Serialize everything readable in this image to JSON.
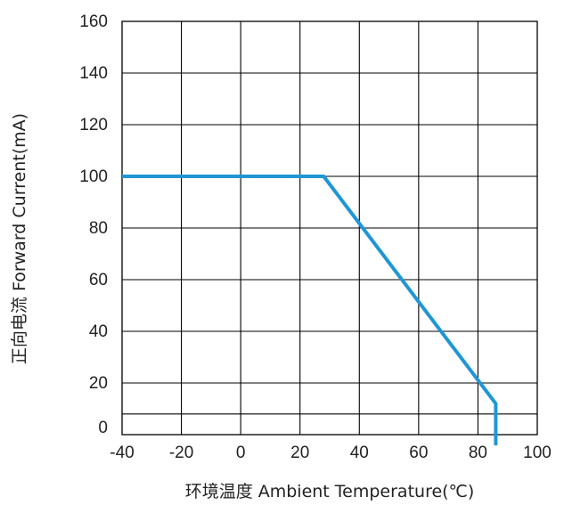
{
  "chart_data": {
    "type": "line",
    "title": "",
    "xlabel": "环境温度  Ambient Temperature(℃)",
    "ylabel": "正向电流 Forward Current(mA)",
    "xlim": [
      -40,
      100
    ],
    "ylim": [
      0,
      160
    ],
    "xticks": [
      "-40",
      "-20",
      "0",
      "20",
      "40",
      "60",
      "80",
      "100"
    ],
    "yticks": [
      "0",
      "20",
      "40",
      "60",
      "80",
      "100",
      "120",
      "140",
      "160"
    ],
    "grid": true,
    "series": [
      {
        "color": "#1f97d4",
        "x": [
          -40,
          28,
          86,
          86
        ],
        "y": [
          100,
          100,
          12,
          0
        ]
      }
    ]
  }
}
